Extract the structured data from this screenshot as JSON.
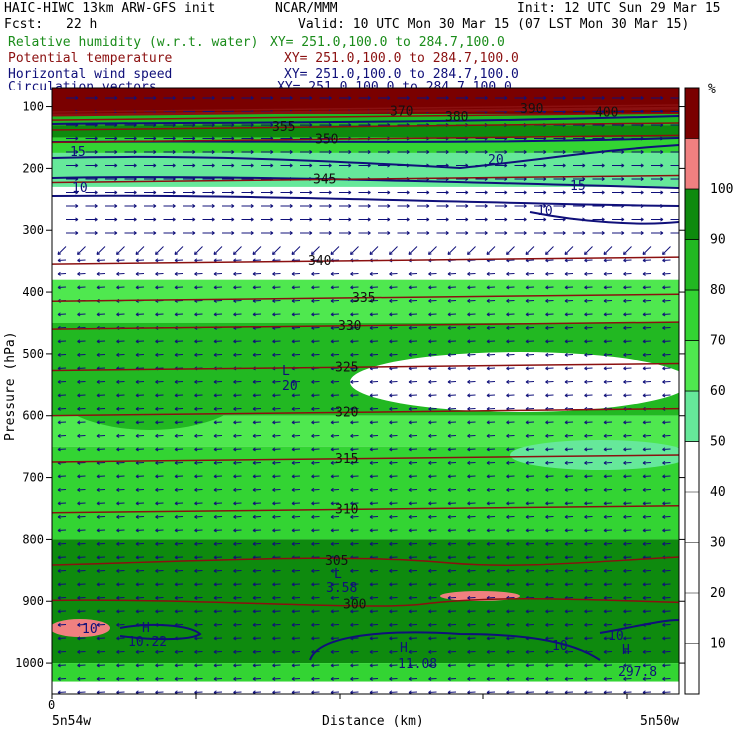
{
  "header": {
    "model": "HAIC-HIWC 13km ARW-GFS init",
    "org": "NCAR/MMM",
    "init": "Init: 12 UTC Sun 29 Mar 15",
    "fcst_label": "Fcst:",
    "fcst_value": "22 h",
    "valid": "Valid: 10 UTC Mon 30 Mar 15 (07 LST Mon 30 Mar 15)",
    "fields": [
      {
        "name": "Relative humidity (w.r.t. water)",
        "xy": "XY= 251.0,100.0 to 284.7,100.0",
        "color": "#1a8c1a"
      },
      {
        "name": "Potential temperature",
        "xy": "XY= 251.0,100.0 to 284.7,100.0",
        "color": "#8b1010"
      },
      {
        "name": "Horizontal wind speed",
        "xy": "XY= 251.0,100.0 to 284.7,100.0",
        "color": "#10107a"
      },
      {
        "name": "Circulation vectors",
        "xy": "XY= 251.0,100.0 to 284.7,100.0",
        "color": "#10107a"
      }
    ]
  },
  "chart_data": {
    "type": "heatmap",
    "ylabel": "Pressure (hPa)",
    "xlabel": "Distance (km)",
    "ylim": [
      1050,
      70
    ],
    "yticks": [
      100,
      200,
      300,
      400,
      500,
      600,
      700,
      800,
      900,
      1000
    ],
    "x_start_tick": "0",
    "x_left_label": "5n54w",
    "x_right_label": "5n50w",
    "colorbar": {
      "unit": "%",
      "bins": [
        {
          "lo": 0,
          "hi": 50,
          "color": "#ffffff"
        },
        {
          "lo": 50,
          "hi": 60,
          "color": "#66e89a"
        },
        {
          "lo": 60,
          "hi": 70,
          "color": "#4fe84f"
        },
        {
          "lo": 70,
          "hi": 80,
          "color": "#33d433"
        },
        {
          "lo": 80,
          "hi": 90,
          "color": "#22b822"
        },
        {
          "lo": 90,
          "hi": 100,
          "color": "#0e8a0e"
        },
        {
          "lo": 100,
          "hi": 110,
          "color": "#f08080"
        },
        {
          "lo": 110,
          "hi": 120,
          "color": "#7a0000"
        }
      ],
      "tick_labels": [
        "10",
        "20",
        "30",
        "40",
        "50",
        "60",
        "70",
        "80",
        "90",
        "100"
      ]
    },
    "rh_layers": [
      {
        "p_top": 70,
        "p_bot": 112,
        "rh": 115
      },
      {
        "p_top": 112,
        "p_bot": 130,
        "rh": 85
      },
      {
        "p_top": 130,
        "p_bot": 150,
        "rh": 95
      },
      {
        "p_top": 150,
        "p_bot": 175,
        "rh": 75
      },
      {
        "p_top": 175,
        "p_bot": 230,
        "rh": 55
      },
      {
        "p_top": 230,
        "p_bot": 380,
        "rh": 30
      },
      {
        "p_top": 380,
        "p_bot": 450,
        "rh": 65
      },
      {
        "p_top": 450,
        "p_bot": 600,
        "rh": 85
      },
      {
        "p_top": 600,
        "p_bot": 650,
        "rh": 65
      },
      {
        "p_top": 650,
        "p_bot": 800,
        "rh": 75
      },
      {
        "p_top": 800,
        "p_bot": 1000,
        "rh": 90
      },
      {
        "p_top": 1000,
        "p_bot": 1030,
        "rh": 70
      }
    ],
    "theta_contours": [
      {
        "label": "300",
        "p": 905
      },
      {
        "label": "305",
        "p": 835
      },
      {
        "label": "310",
        "p": 752
      },
      {
        "label": "315",
        "p": 670
      },
      {
        "label": "320",
        "p": 595
      },
      {
        "label": "325",
        "p": 522
      },
      {
        "label": "330",
        "p": 455
      },
      {
        "label": "335",
        "p": 410
      },
      {
        "label": "340",
        "p": 350
      },
      {
        "label": "345",
        "p": 218
      },
      {
        "label": "350",
        "p": 153
      },
      {
        "label": "355",
        "p": 133
      },
      {
        "label": "370",
        "p": 108
      },
      {
        "label": "380",
        "p": 117
      },
      {
        "label": "390",
        "p": 104
      },
      {
        "label": "400",
        "p": 110
      }
    ],
    "wind_labels": [
      "15",
      "10",
      "20",
      "15",
      "10",
      "10",
      "10",
      "10"
    ],
    "extrema": [
      {
        "type": "L",
        "value": "20"
      },
      {
        "type": "L",
        "value": "3.58"
      },
      {
        "type": "H",
        "value": "10.22"
      },
      {
        "type": "H",
        "value": "11.08"
      },
      {
        "type": "H",
        "value": "297.8"
      }
    ]
  }
}
